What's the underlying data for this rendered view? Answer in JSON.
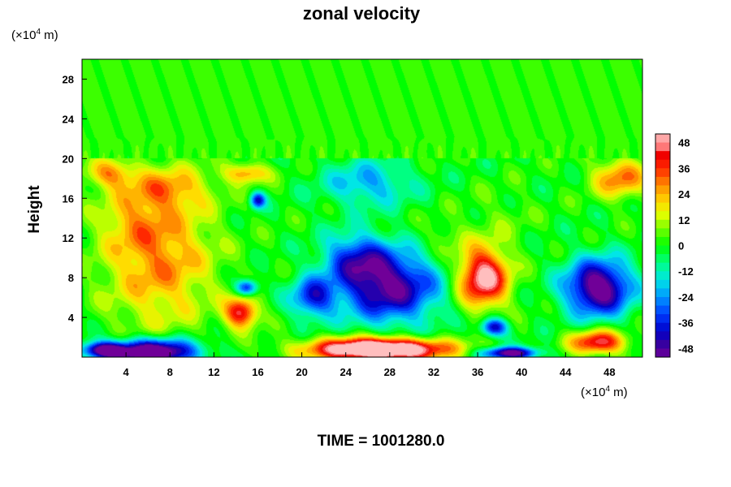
{
  "chart_data": {
    "type": "heatmap",
    "title": "zonal velocity",
    "ylabel": "Height",
    "y_unit_label": "(×10",
    "y_unit_exp": "4",
    "y_unit_tail": " m)",
    "x_unit_label": "(×10",
    "x_unit_exp": "4",
    "x_unit_tail": " m)",
    "xlim": [
      0,
      51
    ],
    "ylim": [
      0,
      30
    ],
    "xticks": [
      4,
      8,
      12,
      16,
      20,
      24,
      28,
      32,
      36,
      40,
      44,
      48
    ],
    "yticks": [
      4,
      8,
      12,
      16,
      20,
      24,
      28
    ],
    "colorbar": {
      "ticks": [
        48,
        36,
        24,
        12,
        0,
        -12,
        -24,
        -36,
        -48
      ],
      "range": [
        -52,
        52
      ]
    },
    "features": [
      {
        "x": 7,
        "y": 10,
        "sx": 5,
        "sy": 7,
        "value": 28
      },
      {
        "x": 4.5,
        "y": 14,
        "sx": 3,
        "sy": 3,
        "value": 10
      },
      {
        "x": 2.5,
        "y": 18.5,
        "sx": 2.2,
        "sy": 1.4,
        "value": 25
      },
      {
        "x": 8,
        "y": 17,
        "sx": 3.5,
        "sy": 2,
        "value": 20
      },
      {
        "x": 28,
        "y": 7,
        "sx": 4.5,
        "sy": 3.5,
        "value": -50
      },
      {
        "x": 25,
        "y": 10,
        "sx": 3,
        "sy": 2.5,
        "value": -30
      },
      {
        "x": 21,
        "y": 6,
        "sx": 2,
        "sy": 2,
        "value": -35
      },
      {
        "x": 36.5,
        "y": 8,
        "sx": 2.3,
        "sy": 3,
        "value": 55
      },
      {
        "x": 47,
        "y": 7,
        "sx": 3,
        "sy": 2.8,
        "value": -58
      },
      {
        "x": 27,
        "y": 0.8,
        "sx": 6,
        "sy": 1.1,
        "value": 80
      },
      {
        "x": 6.5,
        "y": 0.5,
        "sx": 4,
        "sy": 1.3,
        "value": -68
      },
      {
        "x": 14.5,
        "y": 4.5,
        "sx": 1.5,
        "sy": 1.5,
        "value": 45
      },
      {
        "x": 15,
        "y": 7,
        "sx": 1,
        "sy": 0.8,
        "value": -40
      },
      {
        "x": 16,
        "y": 15.8,
        "sx": 0.7,
        "sy": 0.8,
        "value": -40
      },
      {
        "x": 37.5,
        "y": 3,
        "sx": 1.2,
        "sy": 0.9,
        "value": -45
      },
      {
        "x": 47,
        "y": 1.5,
        "sx": 2.5,
        "sy": 1.2,
        "value": 45
      },
      {
        "x": 49,
        "y": 18,
        "sx": 2.5,
        "sy": 2,
        "value": 30
      },
      {
        "x": 26,
        "y": 17.5,
        "sx": 4,
        "sy": 2.3,
        "value": -22
      },
      {
        "x": 38,
        "y": 14,
        "sx": 3,
        "sy": 3,
        "value": 5
      },
      {
        "x": 15,
        "y": 18.5,
        "sx": 2,
        "sy": 1,
        "value": 28
      },
      {
        "x": 2,
        "y": 0.7,
        "sx": 2,
        "sy": 0.8,
        "value": -50
      },
      {
        "x": 39,
        "y": 0.4,
        "sx": 2.5,
        "sy": 0.6,
        "value": -55
      },
      {
        "x": 33,
        "y": 12,
        "sx": 2,
        "sy": 2,
        "value": 8
      }
    ]
  },
  "footer": {
    "time_label": "TIME = 1001280.0"
  }
}
